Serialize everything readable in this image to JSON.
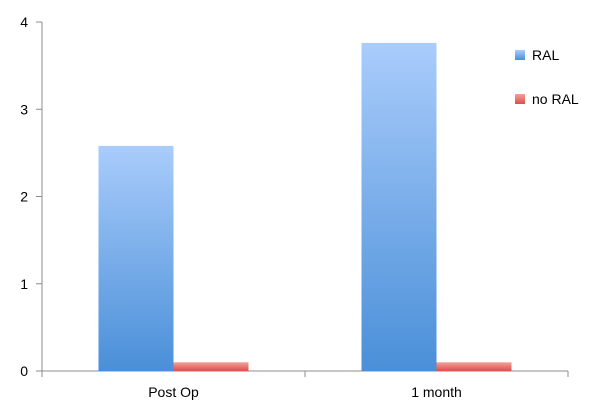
{
  "chart_data": {
    "type": "bar",
    "categories": [
      "Post Op",
      "1 month"
    ],
    "series": [
      {
        "name": "RAL",
        "values": [
          2.58,
          3.76
        ],
        "color_top": "#a9ccfb",
        "color_bottom": "#4a8fd8"
      },
      {
        "name": "no RAL",
        "values": [
          0.1,
          0.1
        ],
        "color_top": "#f5a09c",
        "color_bottom": "#d9504a"
      }
    ],
    "title": "",
    "xlabel": "",
    "ylabel": "",
    "ylim": [
      0,
      4
    ],
    "yticks": [
      0,
      1,
      2,
      3,
      4
    ],
    "grid": false,
    "legend_position": "right"
  }
}
